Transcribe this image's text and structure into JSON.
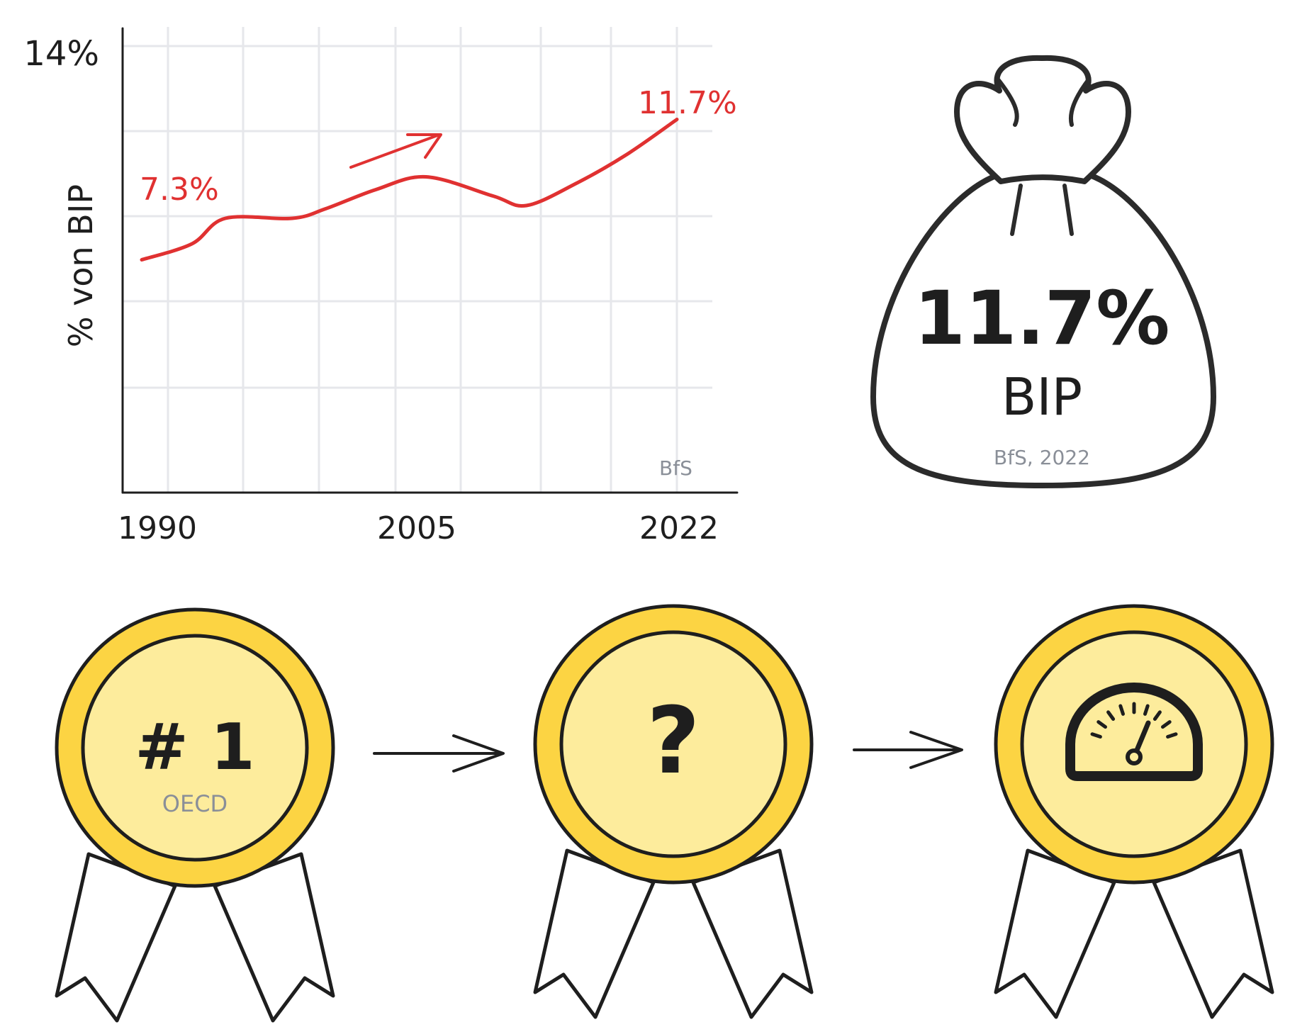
{
  "chart_data": {
    "type": "line",
    "title": "",
    "xlabel": "",
    "ylabel": "% von BIP",
    "x_tick_labels": [
      "1990",
      "2005",
      "2022"
    ],
    "y_tick_labels": [
      "14%"
    ],
    "ylim": [
      0,
      14
    ],
    "xlim": [
      1990,
      2022
    ],
    "grid": true,
    "source": "BfS",
    "series": [
      {
        "color": "#e03131",
        "x": [
          1990,
          1993,
          1995,
          1999,
          2001,
          2004,
          2007,
          2011,
          2013,
          2016,
          2019,
          2022
        ],
        "y": [
          7.3,
          7.8,
          8.6,
          8.6,
          8.9,
          9.5,
          9.9,
          9.3,
          9.0,
          9.7,
          10.6,
          11.7
        ]
      }
    ],
    "annotations": [
      "7.3%",
      "11.7%"
    ]
  },
  "money_bag": {
    "value": "11.7%",
    "label": "BIP",
    "source": "BfS, 2022"
  },
  "medals": [
    {
      "text": "# 1",
      "sub": "OECD",
      "icon": "none"
    },
    {
      "text": "?",
      "icon": "none"
    },
    {
      "icon": "speedometer-icon"
    }
  ],
  "colors": {
    "line": "#e03131",
    "medal_outer": "#fcd443",
    "medal_inner": "#fdec9c",
    "stroke": "#1e1e1e",
    "muted": "#8a8f98",
    "grid": "#e6e7eb"
  }
}
